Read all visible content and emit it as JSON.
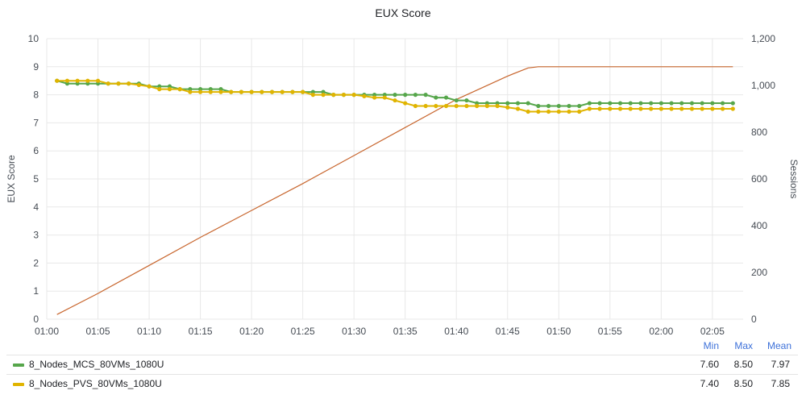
{
  "chart_data": {
    "type": "line",
    "title": "EUX Score",
    "ylabel": "EUX Score",
    "ylabel_right": "Sessions",
    "ylim": [
      0,
      10
    ],
    "ylim_right": [
      0,
      1200
    ],
    "grid": true,
    "x_ticks": [
      "01:00",
      "01:05",
      "01:10",
      "01:15",
      "01:20",
      "01:25",
      "01:30",
      "01:35",
      "01:40",
      "01:45",
      "01:50",
      "01:55",
      "02:00",
      "02:05"
    ],
    "y_ticks": [
      "0",
      "1",
      "2",
      "3",
      "4",
      "5",
      "6",
      "7",
      "8",
      "9",
      "10"
    ],
    "y_right_ticks": [
      "0",
      "200",
      "400",
      "600",
      "800",
      "1,000",
      "1,200"
    ],
    "series": [
      {
        "name": "8_Nodes_MCS_80VMs_1080U",
        "color": "#56a64b",
        "axis": "left",
        "x": [
          "01:01",
          "01:02",
          "01:03",
          "01:04",
          "01:05",
          "01:06",
          "01:07",
          "01:08",
          "01:09",
          "01:10",
          "01:11",
          "01:12",
          "01:13",
          "01:14",
          "01:15",
          "01:16",
          "01:17",
          "01:18",
          "01:19",
          "01:20",
          "01:21",
          "01:22",
          "01:23",
          "01:24",
          "01:25",
          "01:26",
          "01:27",
          "01:28",
          "01:29",
          "01:30",
          "01:31",
          "01:32",
          "01:33",
          "01:34",
          "01:35",
          "01:36",
          "01:37",
          "01:38",
          "01:39",
          "01:40",
          "01:41",
          "01:42",
          "01:43",
          "01:44",
          "01:45",
          "01:46",
          "01:47",
          "01:48",
          "01:49",
          "01:50",
          "01:51",
          "01:52",
          "01:53",
          "01:54",
          "01:55",
          "01:56",
          "01:57",
          "01:58",
          "01:59",
          "02:00",
          "02:01",
          "02:02",
          "02:03",
          "02:04",
          "02:05",
          "02:06",
          "02:07"
        ],
        "values": [
          8.5,
          8.4,
          8.4,
          8.4,
          8.4,
          8.4,
          8.4,
          8.4,
          8.4,
          8.3,
          8.3,
          8.3,
          8.2,
          8.2,
          8.2,
          8.2,
          8.2,
          8.1,
          8.1,
          8.1,
          8.1,
          8.1,
          8.1,
          8.1,
          8.1,
          8.1,
          8.1,
          8.0,
          8.0,
          8.0,
          8.0,
          8.0,
          8.0,
          8.0,
          8.0,
          8.0,
          8.0,
          7.9,
          7.9,
          7.8,
          7.8,
          7.7,
          7.7,
          7.7,
          7.7,
          7.7,
          7.7,
          7.6,
          7.6,
          7.6,
          7.6,
          7.6,
          7.7,
          7.7,
          7.7,
          7.7,
          7.7,
          7.7,
          7.7,
          7.7,
          7.7,
          7.7,
          7.7,
          7.7,
          7.7,
          7.7,
          7.7
        ],
        "min": "7.60",
        "max": "8.50",
        "mean": "7.97"
      },
      {
        "name": "8_Nodes_PVS_80VMs_1080U",
        "color": "#e0b400",
        "axis": "left",
        "x": [
          "01:01",
          "01:02",
          "01:03",
          "01:04",
          "01:05",
          "01:06",
          "01:07",
          "01:08",
          "01:09",
          "01:10",
          "01:11",
          "01:12",
          "01:13",
          "01:14",
          "01:15",
          "01:16",
          "01:17",
          "01:18",
          "01:19",
          "01:20",
          "01:21",
          "01:22",
          "01:23",
          "01:24",
          "01:25",
          "01:26",
          "01:27",
          "01:28",
          "01:29",
          "01:30",
          "01:31",
          "01:32",
          "01:33",
          "01:34",
          "01:35",
          "01:36",
          "01:37",
          "01:38",
          "01:39",
          "01:40",
          "01:41",
          "01:42",
          "01:43",
          "01:44",
          "01:45",
          "01:46",
          "01:47",
          "01:48",
          "01:49",
          "01:50",
          "01:51",
          "01:52",
          "01:53",
          "01:54",
          "01:55",
          "01:56",
          "01:57",
          "01:58",
          "01:59",
          "02:00",
          "02:01",
          "02:02",
          "02:03",
          "02:04",
          "02:05",
          "02:06",
          "02:07"
        ],
        "values": [
          8.5,
          8.5,
          8.5,
          8.5,
          8.5,
          8.4,
          8.4,
          8.4,
          8.35,
          8.3,
          8.2,
          8.2,
          8.2,
          8.1,
          8.1,
          8.1,
          8.1,
          8.1,
          8.1,
          8.1,
          8.1,
          8.1,
          8.1,
          8.1,
          8.1,
          8.0,
          8.0,
          8.0,
          8.0,
          8.0,
          7.95,
          7.9,
          7.9,
          7.8,
          7.7,
          7.6,
          7.6,
          7.6,
          7.6,
          7.6,
          7.6,
          7.6,
          7.6,
          7.6,
          7.55,
          7.5,
          7.4,
          7.4,
          7.4,
          7.4,
          7.4,
          7.4,
          7.5,
          7.5,
          7.5,
          7.5,
          7.5,
          7.5,
          7.5,
          7.5,
          7.5,
          7.5,
          7.5,
          7.5,
          7.5,
          7.5,
          7.5
        ],
        "min": "7.40",
        "max": "8.50",
        "mean": "7.85"
      },
      {
        "color": "#c8662e",
        "axis": "right",
        "x": [
          "01:01",
          "01:05",
          "01:10",
          "01:15",
          "01:20",
          "01:25",
          "01:30",
          "01:35",
          "01:40",
          "01:45",
          "01:47",
          "01:48",
          "01:49",
          "01:50",
          "01:55",
          "02:00",
          "02:05",
          "02:07"
        ],
        "values": [
          20,
          110,
          230,
          350,
          465,
          580,
          700,
          820,
          940,
          1040,
          1075,
          1080,
          1080,
          1080,
          1080,
          1080,
          1080,
          1080
        ]
      }
    ],
    "legend_headers": {
      "min": "Min",
      "max": "Max",
      "mean": "Mean"
    }
  }
}
